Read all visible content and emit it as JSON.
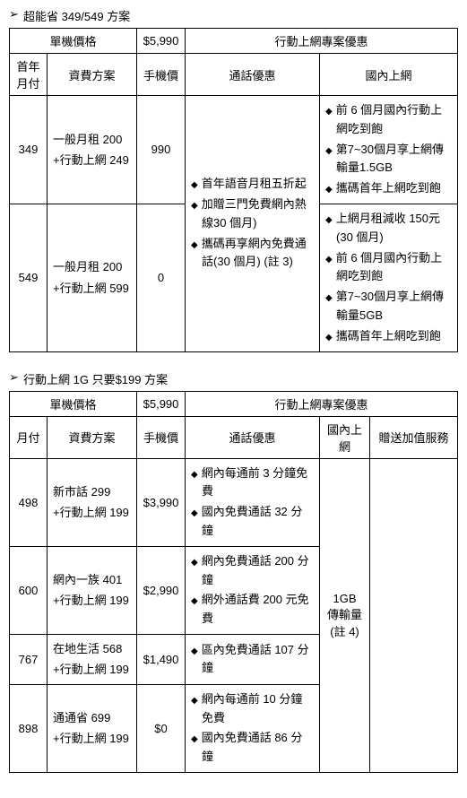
{
  "section1": {
    "title": "超能省 349/549 方案",
    "headers": {
      "unit_price": "單機價格",
      "price_value": "$5,990",
      "promo": "行動上網專案優惠",
      "first_year": "首年月付",
      "plan": "資費方案",
      "phone_price": "手機價",
      "call_benefit": "通話優惠",
      "domestic_net": "國內上網"
    },
    "rows": [
      {
        "monthly": "349",
        "plan_a": "一般月租 200",
        "plan_b": "+行動上網 249",
        "phone_price": "990",
        "net_bullets": [
          "前 6 個月國內行動上網吃到飽",
          "第7~30個月享上網傳輸量1.5GB",
          "攜碼首年上網吃到飽"
        ]
      },
      {
        "monthly": "549",
        "plan_a": "一般月租 200",
        "plan_b": "+行動上網 599",
        "phone_price": "0",
        "net_bullets": [
          "上網月租減收 150元(30 個月)",
          "前 6 個月國內行動上網吃到飽",
          "第7~30個月享上網傳輸量5GB",
          "攜碼首年上網吃到飽"
        ]
      }
    ],
    "call_bullets": [
      "首年語音月租五折起",
      "加贈三門免費網內熱線30 個月)",
      "攜碼再享網內免費通話(30 個月) (註 3)"
    ]
  },
  "section2": {
    "title": "行動上網 1G 只要$199 方案",
    "headers": {
      "unit_price": "單機價格",
      "price_value": "$5,990",
      "promo": "行動上網專案優惠",
      "monthly": "月付",
      "plan": "資費方案",
      "phone_price": "手機價",
      "call_benefit": "通話優惠",
      "domestic_net": "國內上網",
      "bonus": "贈送加值服務"
    },
    "rows": [
      {
        "monthly": "498",
        "plan_a": "新市話 299",
        "plan_b": "+行動上網 199",
        "phone_price": "$3,990",
        "call_bullets": [
          "網內每通前 3 分鐘免費",
          "國內免費通話 32 分鐘"
        ]
      },
      {
        "monthly": "600",
        "plan_a": "網內一族 401",
        "plan_b": "+行動上網 199",
        "phone_price": "$2,990",
        "call_bullets": [
          "網內免費通話 200 分鐘",
          "網外通話費 200 元免費"
        ]
      },
      {
        "monthly": "767",
        "plan_a": "在地生活 568",
        "plan_b": "+行動上網 199",
        "phone_price": "$1,490",
        "call_bullets": [
          "區內免費通話 107 分鐘"
        ]
      },
      {
        "monthly": "898",
        "plan_a": "通通省 699",
        "plan_b": "+行動上網 199",
        "phone_price": "$0",
        "call_bullets": [
          "網內每通前 10 分鐘免費",
          "國內免費通話 86 分鐘"
        ]
      }
    ],
    "net_line1": "1GB",
    "net_line2": "傳輸量",
    "net_line3": "(註 4)"
  }
}
